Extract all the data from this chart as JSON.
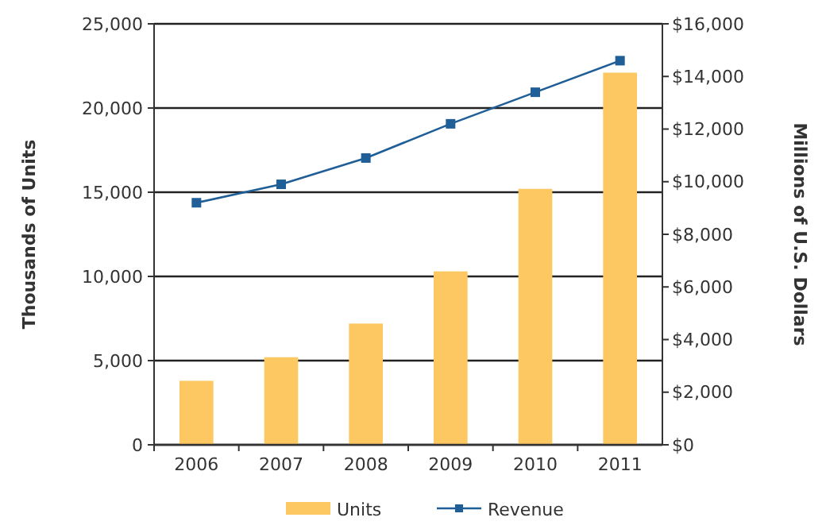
{
  "chart_data": {
    "type": "bar",
    "categories": [
      "2006",
      "2007",
      "2008",
      "2009",
      "2010",
      "2011"
    ],
    "series": [
      {
        "name": "Units",
        "color": "#fdc862",
        "values": [
          3800,
          5200,
          7200,
          10300,
          15200,
          22100
        ]
      },
      {
        "name": "Revenue",
        "type": "line",
        "axis": "y2",
        "color": "#1f5e96",
        "marker": "square",
        "values": [
          9200,
          9900,
          10900,
          12200,
          13400,
          14600
        ]
      }
    ],
    "ylabel": "Thousands of Units",
    "y2label": "Millions of U.S. Dollars",
    "ylim": [
      0,
      25000
    ],
    "yticks": [
      {
        "value": 0,
        "label": "0"
      },
      {
        "value": 5000,
        "label": "5,000"
      },
      {
        "value": 10000,
        "label": "10,000"
      },
      {
        "value": 15000,
        "label": "15,000"
      },
      {
        "value": 20000,
        "label": "20,000"
      },
      {
        "value": 25000,
        "label": "25,000"
      }
    ],
    "y2lim": [
      0,
      16000
    ],
    "y2ticks": [
      {
        "value": 0,
        "label": "$0"
      },
      {
        "value": 2000,
        "label": "$2,000"
      },
      {
        "value": 4000,
        "label": "$4,000"
      },
      {
        "value": 6000,
        "label": "$6,000"
      },
      {
        "value": 8000,
        "label": "$8,000"
      },
      {
        "value": 10000,
        "label": "$10,000"
      },
      {
        "value": 12000,
        "label": "$12,000"
      },
      {
        "value": 14000,
        "label": "$14,000"
      },
      {
        "value": 16000,
        "label": "$16,000"
      }
    ],
    "grid": "y",
    "legend": "bottom"
  }
}
